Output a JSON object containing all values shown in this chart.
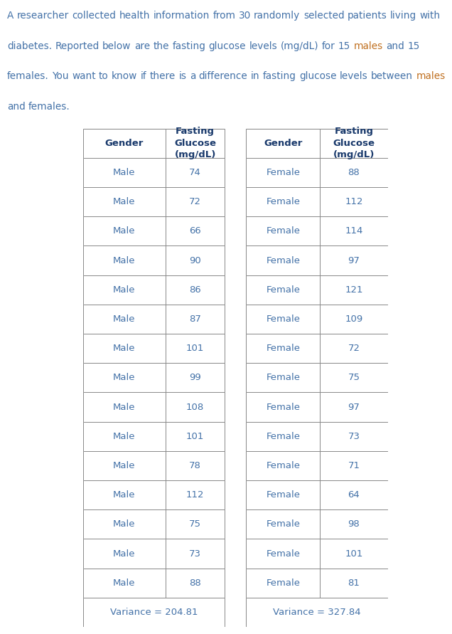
{
  "intro_lines": [
    "A researcher collected health information from 30 randomly selected patients living with",
    "diabetes. Reported below are the fasting glucose levels (mg/dL) for 15 males and 15",
    "females. You want to know if there is a difference in fasting glucose levels between males",
    "and females."
  ],
  "highlight_words": [
    "males",
    "females"
  ],
  "male_data": [
    74,
    72,
    66,
    90,
    86,
    87,
    101,
    99,
    108,
    101,
    78,
    112,
    75,
    73,
    88
  ],
  "female_data": [
    88,
    112,
    114,
    97,
    121,
    109,
    72,
    75,
    97,
    73,
    71,
    64,
    98,
    101,
    81
  ],
  "male_variance": "204.81",
  "female_variance": "327.84",
  "text_color": "#4472a8",
  "highlight_color": "#c07020",
  "header_color": "#1a3a6c",
  "bg_color": "#ffffff",
  "border_color": "#888888",
  "font_size_intro": 9.8,
  "font_size_table": 9.5,
  "font_size_header": 9.5
}
